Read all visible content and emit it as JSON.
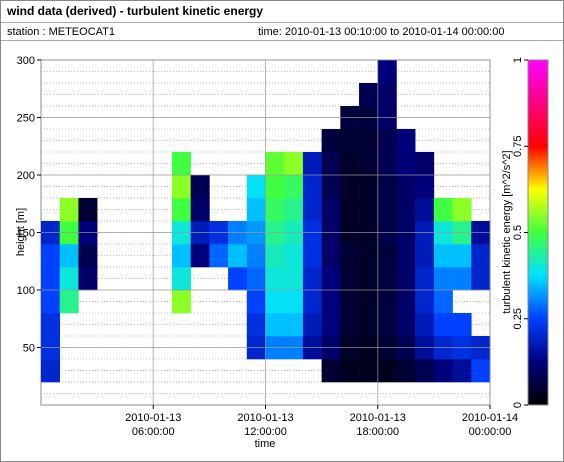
{
  "chart_data": {
    "type": "heatmap",
    "title": "wind data (derived) - turbulent kinetic energy",
    "station": "station : METEOCAT1",
    "period": "time: 2010-01-13 00:10:00 to 2010-01-14 00:00:00",
    "xlabel": "time",
    "ylabel": "height [m]",
    "colorbar_label": "turbulent kinetic energy [m^2/s^2]",
    "x": [
      "2010-01-13 00:00:00",
      "2010-01-13 01:00:00",
      "2010-01-13 02:00:00",
      "2010-01-13 03:00:00",
      "2010-01-13 04:00:00",
      "2010-01-13 05:00:00",
      "2010-01-13 06:00:00",
      "2010-01-13 07:00:00",
      "2010-01-13 08:00:00",
      "2010-01-13 09:00:00",
      "2010-01-13 10:00:00",
      "2010-01-13 11:00:00",
      "2010-01-13 12:00:00",
      "2010-01-13 13:00:00",
      "2010-01-13 14:00:00",
      "2010-01-13 15:00:00",
      "2010-01-13 16:00:00",
      "2010-01-13 17:00:00",
      "2010-01-13 18:00:00",
      "2010-01-13 19:00:00",
      "2010-01-13 20:00:00",
      "2010-01-13 21:00:00",
      "2010-01-13 22:00:00",
      "2010-01-13 23:00:00",
      "2010-01-14 00:00:00"
    ],
    "y": [
      20,
      40,
      60,
      80,
      100,
      120,
      140,
      160,
      180,
      200,
      220,
      240,
      260,
      280,
      300
    ],
    "z": [
      [
        0.2,
        0.22,
        0.22,
        0.25,
        0.25,
        0.25,
        0.2,
        null,
        null,
        null,
        null,
        null,
        null,
        null
      ],
      [
        null,
        null,
        null,
        0.45,
        0.4,
        0.35,
        0.5,
        0.55,
        null,
        null,
        null,
        null,
        null,
        null
      ],
      [
        null,
        null,
        null,
        null,
        0.1,
        0.08,
        0.12,
        0.05,
        null,
        null,
        null,
        null,
        null,
        null
      ],
      [
        null,
        null,
        null,
        null,
        null,
        null,
        null,
        null,
        null,
        null,
        null,
        null,
        null,
        null
      ],
      [
        null,
        null,
        null,
        null,
        null,
        null,
        null,
        null,
        null,
        null,
        null,
        null,
        null,
        null
      ],
      [
        null,
        null,
        null,
        null,
        null,
        null,
        null,
        null,
        null,
        null,
        null,
        null,
        null,
        null
      ],
      [
        null,
        null,
        null,
        null,
        null,
        null,
        null,
        null,
        null,
        null,
        null,
        null,
        null,
        null
      ],
      [
        null,
        null,
        null,
        0.55,
        0.4,
        0.35,
        0.4,
        0.5,
        0.55,
        0.5,
        null,
        null,
        null,
        null
      ],
      [
        null,
        null,
        null,
        null,
        null,
        0.12,
        0.18,
        0.1,
        0.08,
        null,
        null,
        null,
        null,
        null
      ],
      [
        null,
        null,
        null,
        null,
        null,
        0.28,
        0.22,
        null,
        null,
        null,
        null,
        null,
        null,
        null
      ],
      [
        null,
        null,
        null,
        null,
        0.25,
        0.35,
        0.3,
        null,
        null,
        null,
        null,
        null,
        null,
        null
      ],
      [
        null,
        0.2,
        0.22,
        0.25,
        0.28,
        0.3,
        0.32,
        0.35,
        0.38,
        null,
        null,
        null,
        null,
        null
      ],
      [
        null,
        0.3,
        0.35,
        0.38,
        0.4,
        0.42,
        0.45,
        0.48,
        0.5,
        0.52,
        null,
        null,
        null,
        null
      ],
      [
        null,
        0.3,
        0.35,
        0.38,
        0.4,
        0.4,
        0.42,
        0.45,
        0.48,
        0.55,
        null,
        null,
        null,
        null
      ],
      [
        null,
        0.15,
        0.18,
        0.2,
        0.2,
        0.22,
        0.22,
        0.2,
        0.2,
        0.18,
        null,
        null,
        null,
        null
      ],
      [
        0.05,
        0.1,
        0.12,
        0.12,
        0.12,
        0.1,
        0.1,
        0.1,
        0.08,
        0.08,
        0.06,
        null,
        null,
        null
      ],
      [
        0.03,
        0.04,
        0.05,
        0.05,
        0.05,
        0.05,
        0.04,
        0.04,
        0.04,
        0.04,
        0.05,
        0.06,
        null,
        null
      ],
      [
        0.03,
        0.03,
        0.04,
        0.04,
        0.04,
        0.04,
        0.04,
        0.04,
        0.04,
        0.05,
        0.05,
        0.06,
        0.08,
        null
      ],
      [
        0.03,
        0.05,
        0.06,
        0.06,
        0.06,
        0.06,
        0.07,
        0.07,
        0.07,
        0.08,
        0.08,
        0.1,
        0.1,
        0.12
      ],
      [
        0.05,
        0.08,
        0.1,
        0.1,
        0.1,
        0.1,
        0.1,
        0.1,
        0.1,
        0.12,
        0.12,
        null,
        null,
        null
      ],
      [
        0.08,
        0.15,
        0.18,
        0.2,
        0.2,
        0.18,
        0.18,
        0.15,
        0.12,
        0.1,
        null,
        null,
        null,
        null
      ],
      [
        0.12,
        0.2,
        0.25,
        0.28,
        0.3,
        0.35,
        0.4,
        0.5,
        null,
        null,
        null,
        null,
        null,
        null
      ],
      [
        0.15,
        0.22,
        0.25,
        null,
        0.3,
        0.35,
        0.45,
        0.55,
        null,
        null,
        null,
        null,
        null,
        null
      ],
      [
        0.25,
        0.2,
        null,
        null,
        0.2,
        0.2,
        0.15,
        null,
        null,
        null,
        null,
        null,
        null,
        null
      ]
    ],
    "xlim": [
      "2010-01-13 00:00:00",
      "2010-01-14 00:00:00"
    ],
    "xticks": [
      {
        "value": "2010-01-13 06:00:00",
        "label": "2010-01-13\n06:00:00"
      },
      {
        "value": "2010-01-13 12:00:00",
        "label": "2010-01-13\n12:00:00"
      },
      {
        "value": "2010-01-13 18:00:00",
        "label": "2010-01-13\n18:00:00"
      },
      {
        "value": "2010-01-14 00:00:00",
        "label": "2010-01-14\n00:00:00"
      }
    ],
    "ylim": [
      0,
      300
    ],
    "yticks": [
      50,
      100,
      150,
      200,
      250,
      300
    ],
    "zlim": [
      0,
      1
    ],
    "zticks": [
      0,
      0.25,
      0.5,
      0.75,
      1
    ],
    "colorscale": [
      "#000000",
      "#000080",
      "#0040ff",
      "#00e0ff",
      "#40ff40",
      "#ffff00",
      "#ff0000",
      "#ff0080",
      "#ff00ff"
    ],
    "grid": true
  }
}
